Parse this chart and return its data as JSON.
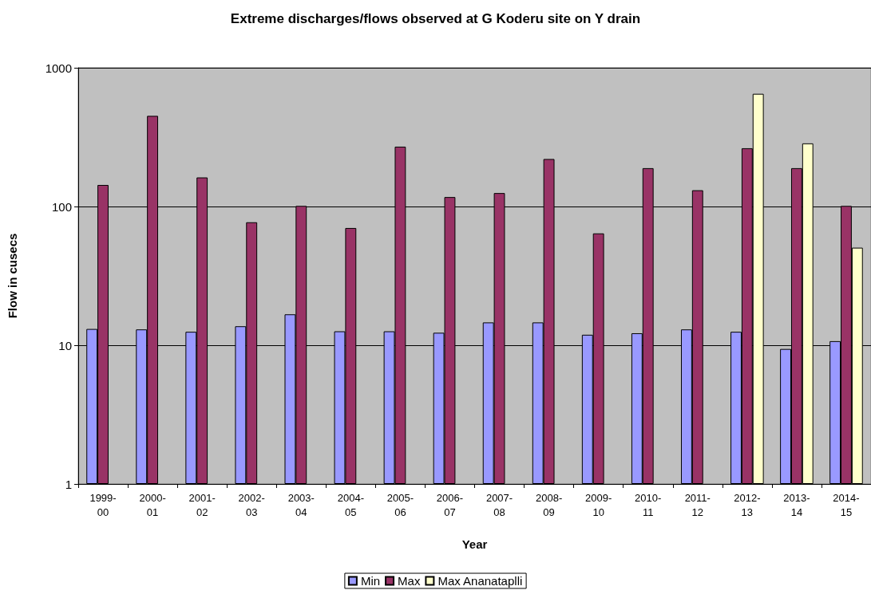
{
  "chart_data": {
    "type": "bar",
    "title": "Extreme discharges/flows observed at G Koderu site on Y drain",
    "xlabel": "Year",
    "ylabel": "Flow in cusecs",
    "categories": [
      "1999-00",
      "2000-01",
      "2001-02",
      "2002-03",
      "2003-04",
      "2004-05",
      "2005-06",
      "2006-07",
      "2007-08",
      "2008-09",
      "2009-10",
      "2010-11",
      "2011-12",
      "2012-13",
      "2013-14",
      "2014-15"
    ],
    "series": [
      {
        "name": "Min",
        "color": "#9999ff",
        "values": [
          13.1,
          13.0,
          12.5,
          13.7,
          16.7,
          12.6,
          12.6,
          12.3,
          14.6,
          14.6,
          11.9,
          12.2,
          13.0,
          12.5,
          9.4,
          10.7
        ]
      },
      {
        "name": "Max",
        "color": "#993366",
        "values": [
          143,
          450,
          162,
          77,
          101,
          70,
          270,
          117,
          125,
          220,
          64,
          189,
          131,
          263,
          189,
          101
        ]
      },
      {
        "name": "Max Ananataplli",
        "color": "#ffffcc",
        "values": [
          null,
          null,
          null,
          null,
          null,
          null,
          null,
          null,
          null,
          null,
          null,
          null,
          null,
          649,
          285,
          50.5
        ]
      }
    ],
    "log": "y",
    "ylim": [
      1,
      1000
    ],
    "yticks": [
      1,
      10,
      100,
      1000
    ],
    "grid": "y",
    "legend": "bottom"
  }
}
